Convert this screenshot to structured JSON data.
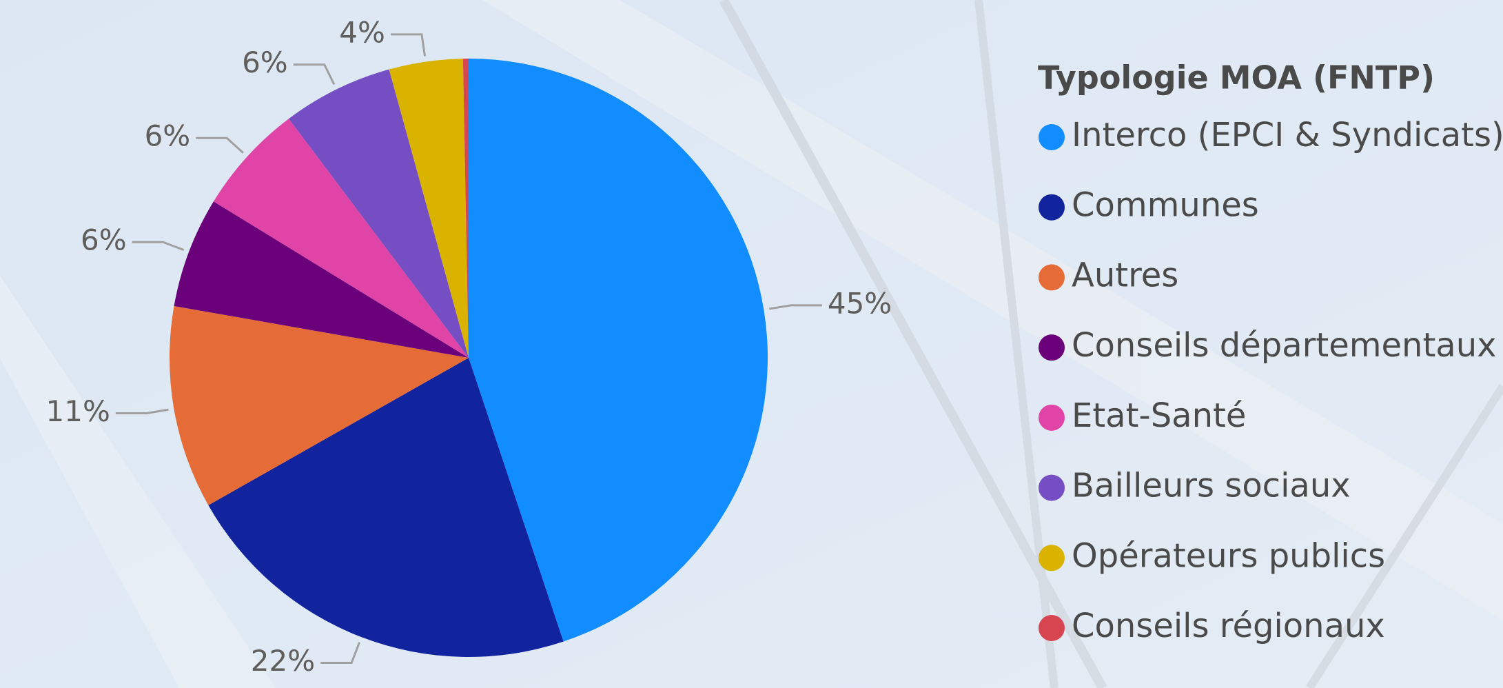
{
  "chart_data": {
    "type": "pie",
    "legend_title": "Typologie MOA (FNTP)",
    "categories": [
      "Interco (EPCI & Syndicats)",
      "Communes",
      "Autres",
      "Conseils départementaux",
      "Etat-Santé",
      "Bailleurs sociaux",
      "Opérateurs publics",
      "Conseils régionaux"
    ],
    "values": [
      45,
      22,
      11,
      6,
      6,
      6,
      4,
      0.3
    ],
    "value_labels": [
      "45%",
      "22%",
      "11%",
      "6%",
      "6%",
      "6%",
      "4%",
      null
    ],
    "colors": [
      "#118dff",
      "#12239e",
      "#e66c37",
      "#6b007b",
      "#e044a7",
      "#744ec2",
      "#d9b300",
      "#d64550"
    ],
    "legend": "right"
  }
}
